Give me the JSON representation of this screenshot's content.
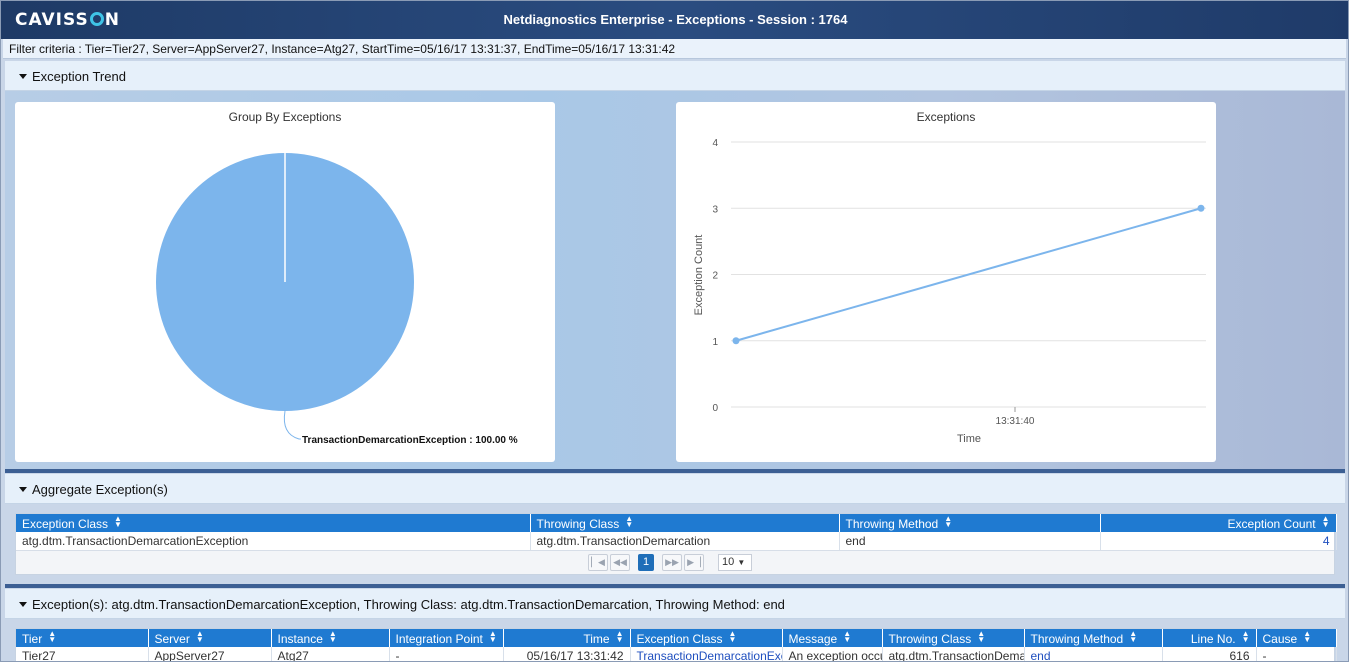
{
  "header": {
    "logo": "CAVISS",
    "logo_tail": "N",
    "title": "Netdiagnostics Enterprise - Exceptions - Session : 1764"
  },
  "filter": {
    "text": "Filter criteria : Tier=Tier27, Server=AppServer27, Instance=Atg27, StartTime=05/16/17 13:31:37, EndTime=05/16/17 13:31:42"
  },
  "sections": {
    "trend": "Exception Trend",
    "aggregate": "Aggregate Exception(s)",
    "exceptions": "Exception(s): atg.dtm.TransactionDemarcationException, Throwing Class: atg.dtm.TransactionDemarcation, Throwing Method: end"
  },
  "colors": {
    "accent": "#1f7ad1",
    "header": "#1e3a66",
    "series": "#7cb5ec"
  },
  "chart_data": [
    {
      "type": "pie",
      "title": "Group By Exceptions",
      "slices": [
        {
          "label": "TransactionDemarcationException",
          "value": 100.0
        }
      ],
      "data_label": "TransactionDemarcationException : 100.00 %"
    },
    {
      "type": "line",
      "title": "Exceptions",
      "xlabel": "Time",
      "ylabel": "Exception Count",
      "ylim": [
        0,
        4
      ],
      "yticks": [
        "0",
        "1",
        "2",
        "3",
        "4"
      ],
      "xticks": [
        "13:31:40"
      ],
      "x": [
        "13:31:37",
        "13:31:42"
      ],
      "series": [
        {
          "values": [
            1,
            3
          ]
        }
      ],
      "grid": true
    }
  ],
  "aggregate_table": {
    "columns": [
      "Exception Class",
      "Throwing Class",
      "Throwing Method",
      "Exception Count"
    ],
    "rows": [
      [
        "atg.dtm.TransactionDemarcationException",
        "atg.dtm.TransactionDemarcation",
        "end",
        "4"
      ]
    ],
    "pager": {
      "current": "1",
      "page_size": "10"
    }
  },
  "exception_table": {
    "columns": [
      "Tier",
      "Server",
      "Instance",
      "Integration Point",
      "Time",
      "Exception Class",
      "Message",
      "Throwing Class",
      "Throwing Method",
      "Line No.",
      "Cause"
    ],
    "rows": [
      [
        "Tier27",
        "AppServer27",
        "Atg27",
        "-",
        "05/16/17 13:31:42",
        "TransactionDemarcationExce",
        "An exception occu",
        "atg.dtm.TransactionDemar",
        "end",
        "616",
        "-"
      ]
    ]
  }
}
